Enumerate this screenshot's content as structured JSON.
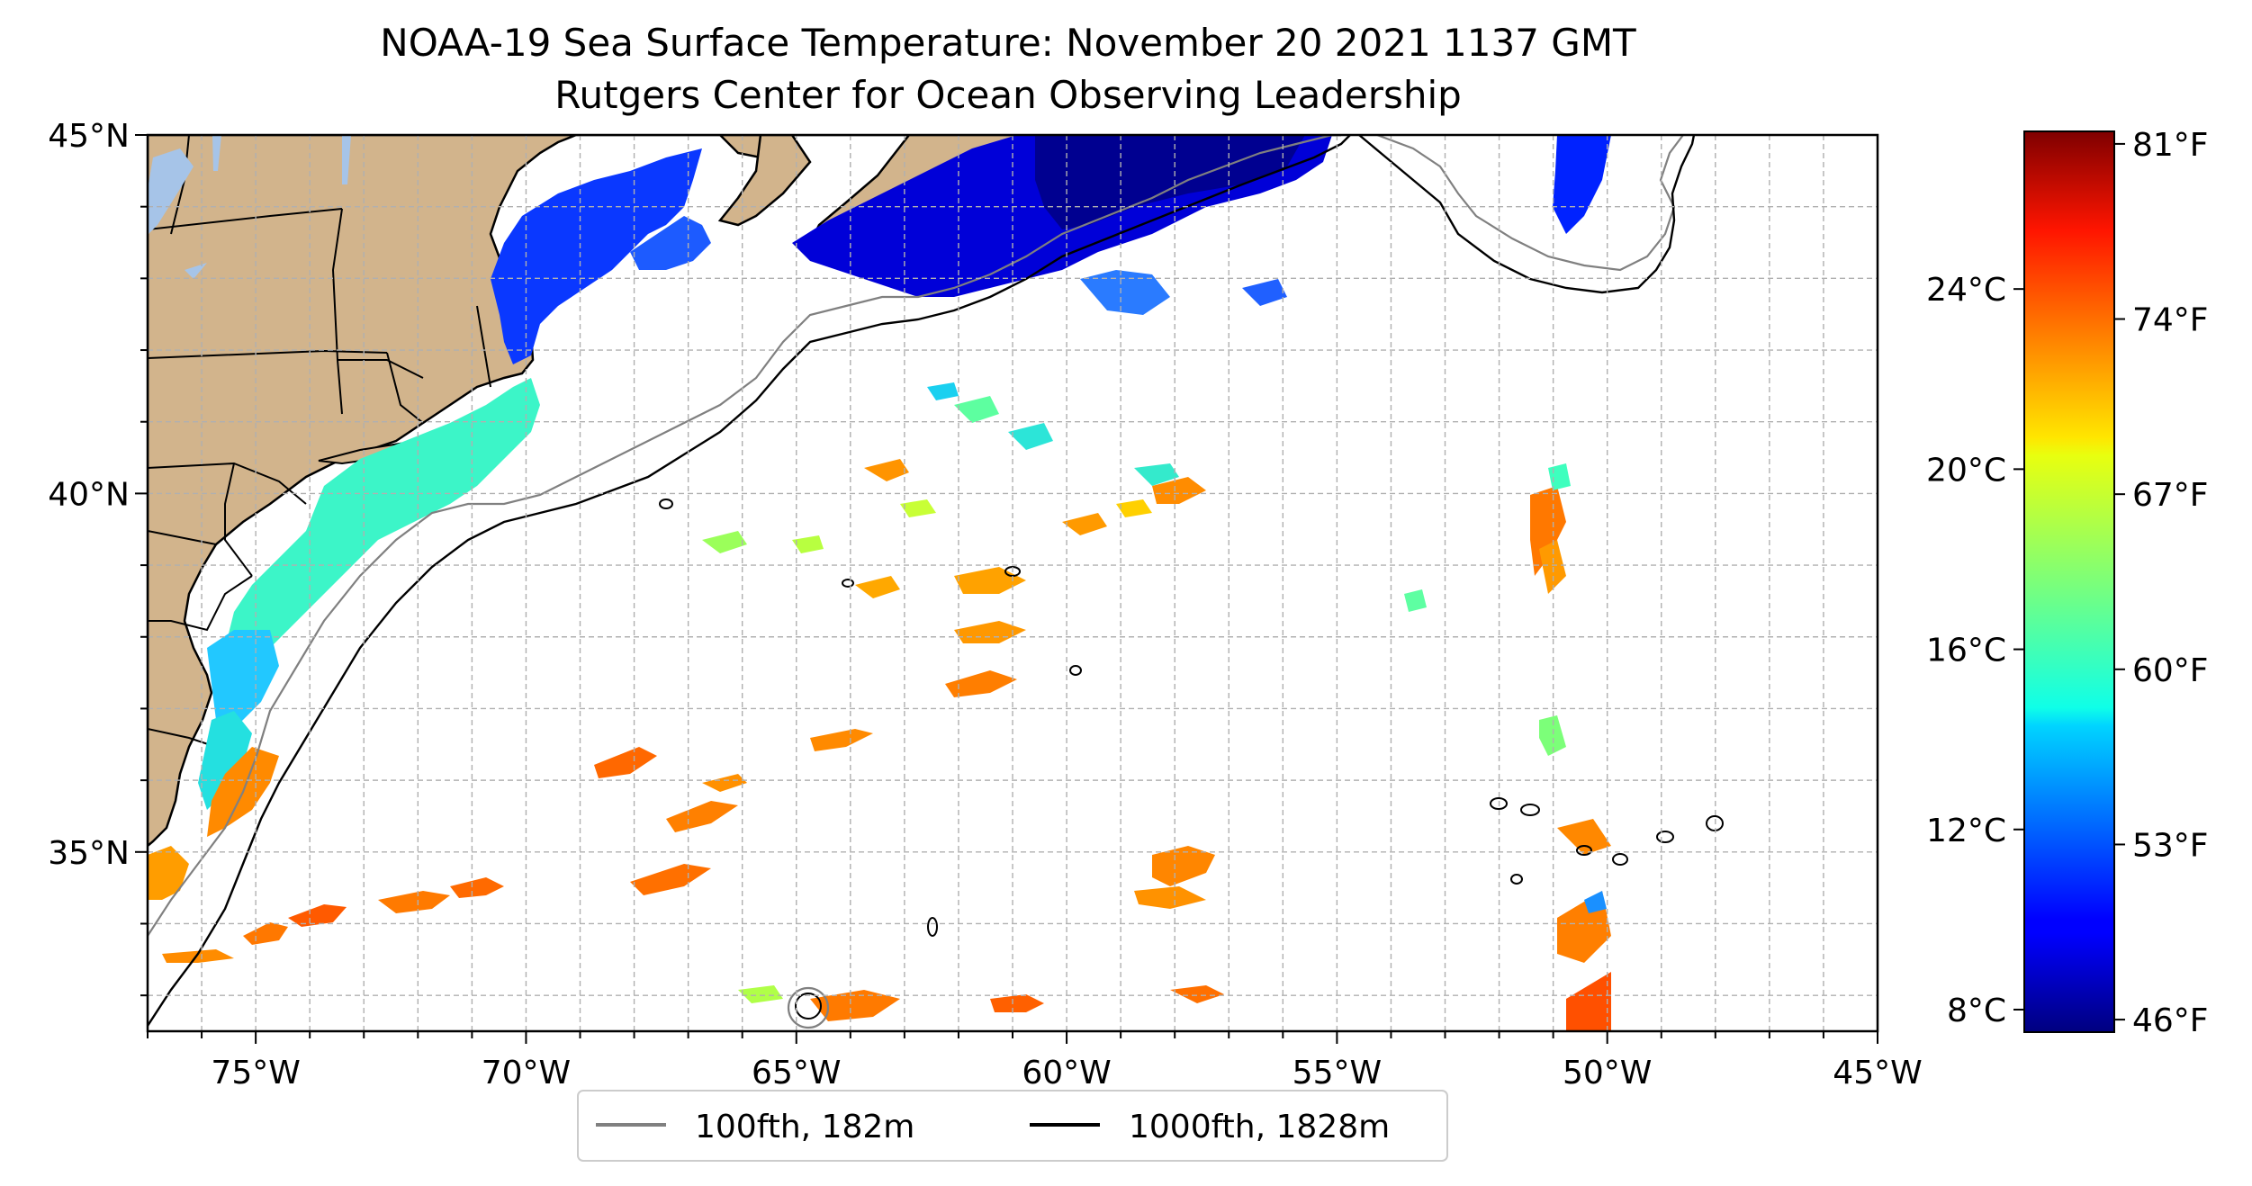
{
  "title": "NOAA-19 Sea Surface Temperature: November 20 2021 1137 GMT",
  "subtitle": "Rutgers Center for Ocean Observing Leadership",
  "map": {
    "lon_range": [
      -77,
      -45
    ],
    "lat_range": [
      32.5,
      45
    ],
    "lon_ticks": [
      {
        "value": -75,
        "label": "75°W"
      },
      {
        "value": -70,
        "label": "70°W"
      },
      {
        "value": -65,
        "label": "65°W"
      },
      {
        "value": -60,
        "label": "60°W"
      },
      {
        "value": -55,
        "label": "55°W"
      },
      {
        "value": -50,
        "label": "50°W"
      },
      {
        "value": -45,
        "label": "45°W"
      }
    ],
    "lat_ticks": [
      {
        "value": 45,
        "label": "45°N"
      },
      {
        "value": 40,
        "label": "40°N"
      },
      {
        "value": 35,
        "label": "35°N"
      }
    ],
    "grid": "dashed",
    "land_color": "#d2b48c",
    "lake_color": "#a6c4e8"
  },
  "legend": {
    "placement": "bottom-center",
    "items": [
      {
        "label": "100fth, 182m",
        "color": "#808080"
      },
      {
        "label": "1000fth, 1828m",
        "color": "#000000"
      }
    ]
  },
  "colorbar": {
    "colormap": "jet",
    "range_f": [
      45.5,
      81.5
    ],
    "fahrenheit_ticks": [
      {
        "value": 46,
        "label": "46°F"
      },
      {
        "value": 53,
        "label": "53°F"
      },
      {
        "value": 60,
        "label": "60°F"
      },
      {
        "value": 67,
        "label": "67°F"
      },
      {
        "value": 74,
        "label": "74°F"
      },
      {
        "value": 81,
        "label": "81°F"
      }
    ],
    "celsius_ticks": [
      {
        "value": 8,
        "label": "8°C"
      },
      {
        "value": 12,
        "label": "12°C"
      },
      {
        "value": 16,
        "label": "16°C"
      },
      {
        "value": 20,
        "label": "20°C"
      },
      {
        "value": 24,
        "label": "24°C"
      }
    ]
  }
}
